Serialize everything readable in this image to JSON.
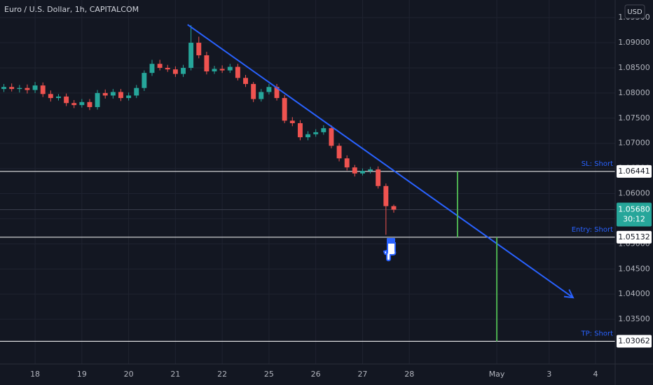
{
  "chart_data": {
    "type": "candlestick",
    "title": "Euro / U.S. Dollar, 1h, CAPITALCOM",
    "currency": "USD",
    "up_color": "#26a69a",
    "down_color": "#ef5350",
    "grid": true,
    "xlim": [
      -0.75,
      12.4
    ],
    "xticks": [
      {
        "value": 0,
        "label": "18"
      },
      {
        "value": 1,
        "label": "19"
      },
      {
        "value": 2,
        "label": "20"
      },
      {
        "value": 3,
        "label": "21"
      },
      {
        "value": 4,
        "label": "22"
      },
      {
        "value": 5,
        "label": "25"
      },
      {
        "value": 6,
        "label": "26"
      },
      {
        "value": 7,
        "label": "27"
      },
      {
        "value": 8,
        "label": "28"
      },
      {
        "value": 9.87,
        "label": "May"
      },
      {
        "value": 10.99,
        "label": "3"
      },
      {
        "value": 11.98,
        "label": "4"
      }
    ],
    "ylim": [
      1.0261,
      1.0985
    ],
    "yticks": [
      {
        "value": 1.095,
        "label": "1.09500"
      },
      {
        "value": 1.09,
        "label": "1.09000"
      },
      {
        "value": 1.085,
        "label": "1.08500"
      },
      {
        "value": 1.08,
        "label": "1.08000"
      },
      {
        "value": 1.075,
        "label": "1.07500"
      },
      {
        "value": 1.07,
        "label": "1.07000"
      },
      {
        "value": 1.065,
        "label": "1.06500"
      },
      {
        "value": 1.06,
        "label": "1.06000"
      },
      {
        "value": 1.055,
        "label": "1.05500"
      },
      {
        "value": 1.05,
        "label": "1.05000"
      },
      {
        "value": 1.045,
        "label": "1.04500"
      },
      {
        "value": 1.04,
        "label": "1.04000"
      },
      {
        "value": 1.035,
        "label": "1.03500"
      }
    ],
    "x": [
      -0.667,
      -0.5,
      -0.333,
      -0.167,
      0,
      0.167,
      0.333,
      0.5,
      0.667,
      0.833,
      1,
      1.167,
      1.333,
      1.5,
      1.667,
      1.833,
      2,
      2.167,
      2.333,
      2.5,
      2.667,
      2.833,
      3,
      3.167,
      3.333,
      3.5,
      3.667,
      3.833,
      4,
      4.167,
      4.333,
      4.5,
      4.667,
      4.833,
      5,
      5.167,
      5.333,
      5.5,
      5.667,
      5.833,
      6,
      6.167,
      6.333,
      6.5,
      6.667,
      6.833,
      7,
      7.167,
      7.333,
      7.5,
      7.667
    ],
    "open": [
      1.0808,
      1.0812,
      1.0808,
      1.081,
      1.0806,
      1.0815,
      1.0798,
      1.079,
      1.0793,
      1.078,
      1.0776,
      1.0782,
      1.0772,
      1.08,
      1.0795,
      1.0802,
      1.079,
      1.0795,
      1.081,
      1.084,
      1.0858,
      1.085,
      1.0847,
      1.0838,
      1.085,
      1.09,
      1.0875,
      1.0843,
      1.0848,
      1.0845,
      1.0852,
      1.083,
      1.0818,
      1.0788,
      1.0802,
      1.0812,
      1.079,
      1.0745,
      1.074,
      1.0712,
      1.0718,
      1.0722,
      1.073,
      1.0695,
      1.067,
      1.0652,
      1.064,
      1.0645,
      1.0648,
      1.0615,
      1.0575
    ],
    "high": [
      1.0818,
      1.0819,
      1.0816,
      1.0817,
      1.0822,
      1.0821,
      1.0805,
      1.0798,
      1.0799,
      1.0786,
      1.0788,
      1.0788,
      1.0806,
      1.0807,
      1.0808,
      1.0808,
      1.0801,
      1.0816,
      1.0845,
      1.0866,
      1.0866,
      1.0856,
      1.0853,
      1.0856,
      1.0935,
      1.0912,
      1.0882,
      1.0854,
      1.0855,
      1.0858,
      1.0858,
      1.0836,
      1.0822,
      1.0808,
      1.0818,
      1.0818,
      1.0796,
      1.0752,
      1.0746,
      1.0724,
      1.0728,
      1.0736,
      1.0736,
      1.07,
      1.0676,
      1.0657,
      1.065,
      1.0653,
      1.0654,
      1.062,
      1.0578
    ],
    "low": [
      1.0802,
      1.0803,
      1.0801,
      1.0799,
      1.08,
      1.0792,
      1.0783,
      1.0785,
      1.0774,
      1.077,
      1.0771,
      1.0766,
      1.0767,
      1.0789,
      1.0789,
      1.0784,
      1.0785,
      1.079,
      1.0804,
      1.0834,
      1.0845,
      1.0842,
      1.0832,
      1.0832,
      1.0845,
      1.0869,
      1.0837,
      1.0838,
      1.084,
      1.084,
      1.0825,
      1.0812,
      1.0782,
      1.0783,
      1.0797,
      1.0785,
      1.074,
      1.0734,
      1.0706,
      1.0706,
      1.0713,
      1.0717,
      1.069,
      1.0664,
      1.0646,
      1.0634,
      1.0636,
      1.064,
      1.061,
      1.0518,
      1.0562
    ],
    "close": [
      1.0812,
      1.0808,
      1.081,
      1.0806,
      1.0815,
      1.0798,
      1.079,
      1.0793,
      1.078,
      1.0776,
      1.0782,
      1.0772,
      1.08,
      1.0795,
      1.0802,
      1.079,
      1.0795,
      1.081,
      1.084,
      1.0858,
      1.085,
      1.0847,
      1.0838,
      1.085,
      1.09,
      1.0875,
      1.0843,
      1.0848,
      1.0845,
      1.0852,
      1.083,
      1.0818,
      1.0788,
      1.0802,
      1.0812,
      1.079,
      1.0745,
      1.074,
      1.0712,
      1.0718,
      1.0722,
      1.073,
      1.0695,
      1.067,
      1.0652,
      1.064,
      1.0645,
      1.0648,
      1.0615,
      1.0575,
      1.0568
    ],
    "trendline": {
      "color": "#2962ff",
      "x": [
        3.26,
        11.5
      ],
      "values": [
        1.0936,
        1.0393
      ]
    },
    "levels": [
      {
        "name": "SL: Short",
        "value": 1.06441
      },
      {
        "name": "Entry: Short",
        "value": 1.05132
      },
      {
        "name": "TP: Short",
        "value": 1.03062
      }
    ],
    "risk_lines": {
      "color": "#4caf50",
      "segments": [
        {
          "x": 9.03,
          "values": [
            1.06441,
            1.05132
          ]
        },
        {
          "x": 9.87,
          "values": [
            1.05132,
            1.03062
          ]
        }
      ]
    },
    "current_price": {
      "value": 1.0568,
      "label": "1.05680",
      "countdown": "30:12"
    }
  }
}
